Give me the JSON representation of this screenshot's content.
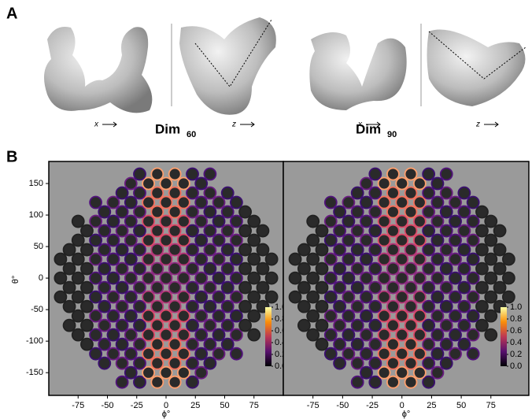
{
  "figure": {
    "panel_a": {
      "letter": "A",
      "structures": [
        {
          "label": "Dim",
          "subscript": "60",
          "axis_left": "x",
          "axis_right": "z"
        },
        {
          "label": "Dim",
          "subscript": "90",
          "axis_left": "x",
          "axis_right": "z"
        }
      ]
    },
    "panel_b": {
      "letter": "B",
      "xlabel": "ϕ°",
      "ylabel": "θ°",
      "plots": [
        {
          "xlim": [
            -100,
            100
          ],
          "ylim": [
            -186,
            185
          ],
          "xticks": [
            -75,
            -50,
            -25,
            0,
            25,
            50,
            75
          ],
          "yticks": [
            150,
            100,
            50,
            0,
            -50,
            -100,
            -150
          ]
        },
        {
          "xlim": [
            -100,
            107
          ],
          "ylim": [
            -186,
            185
          ],
          "xticks": [
            -75,
            -50,
            -25,
            0,
            25,
            50,
            75
          ]
        }
      ],
      "colorbar_ticks": [
        {
          "value": 1,
          "label": "1.0"
        },
        {
          "value": 0.8,
          "label": "0.8"
        },
        {
          "value": 0.6,
          "label": "0.6"
        },
        {
          "value": 0.4,
          "label": "0.4"
        },
        {
          "value": 0.2,
          "label": "0.2"
        },
        {
          "value": 0,
          "label": "0.0"
        }
      ]
    }
  }
}
